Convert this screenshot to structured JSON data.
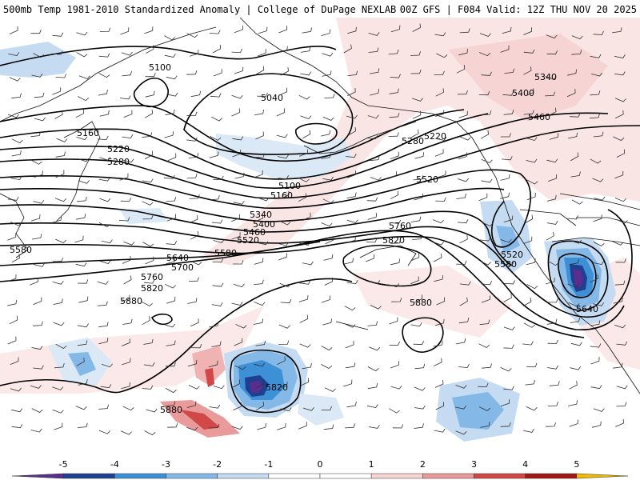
{
  "header": {
    "title": "500mb Temp 1981-2010 Standardized Anomaly | College of DuPage NEXLAB",
    "run_info": "00Z GFS | F084 Valid: 12Z THU NOV 20 2025"
  },
  "contours": {
    "labels": [
      "5100",
      "5040",
      "5160",
      "5220",
      "5280",
      "5100",
      "5160",
      "5340",
      "5400",
      "5460",
      "5520",
      "5580",
      "5640",
      "5700",
      "5760",
      "5820",
      "5880",
      "5220",
      "5280",
      "5520",
      "5340",
      "5400",
      "5460",
      "5760",
      "5820",
      "5520",
      "5580",
      "5640",
      "5880",
      "5820",
      "5880",
      "5580"
    ]
  },
  "colorbar": {
    "ticks": [
      "-5",
      "-4",
      "-3",
      "-2",
      "-1",
      "0",
      "1",
      "2",
      "3",
      "4",
      "5"
    ],
    "colors": {
      "neg5": "#5a2d8f",
      "neg4": "#1f3f8f",
      "neg3": "#3d8fd6",
      "neg2": "#84b8e6",
      "neg1": "#c4dbf2",
      "pos1": "#f6d2d2",
      "pos2": "#e99a9a",
      "pos3": "#d04848",
      "pos4": "#a01818",
      "pos5": "#f4b800"
    }
  }
}
